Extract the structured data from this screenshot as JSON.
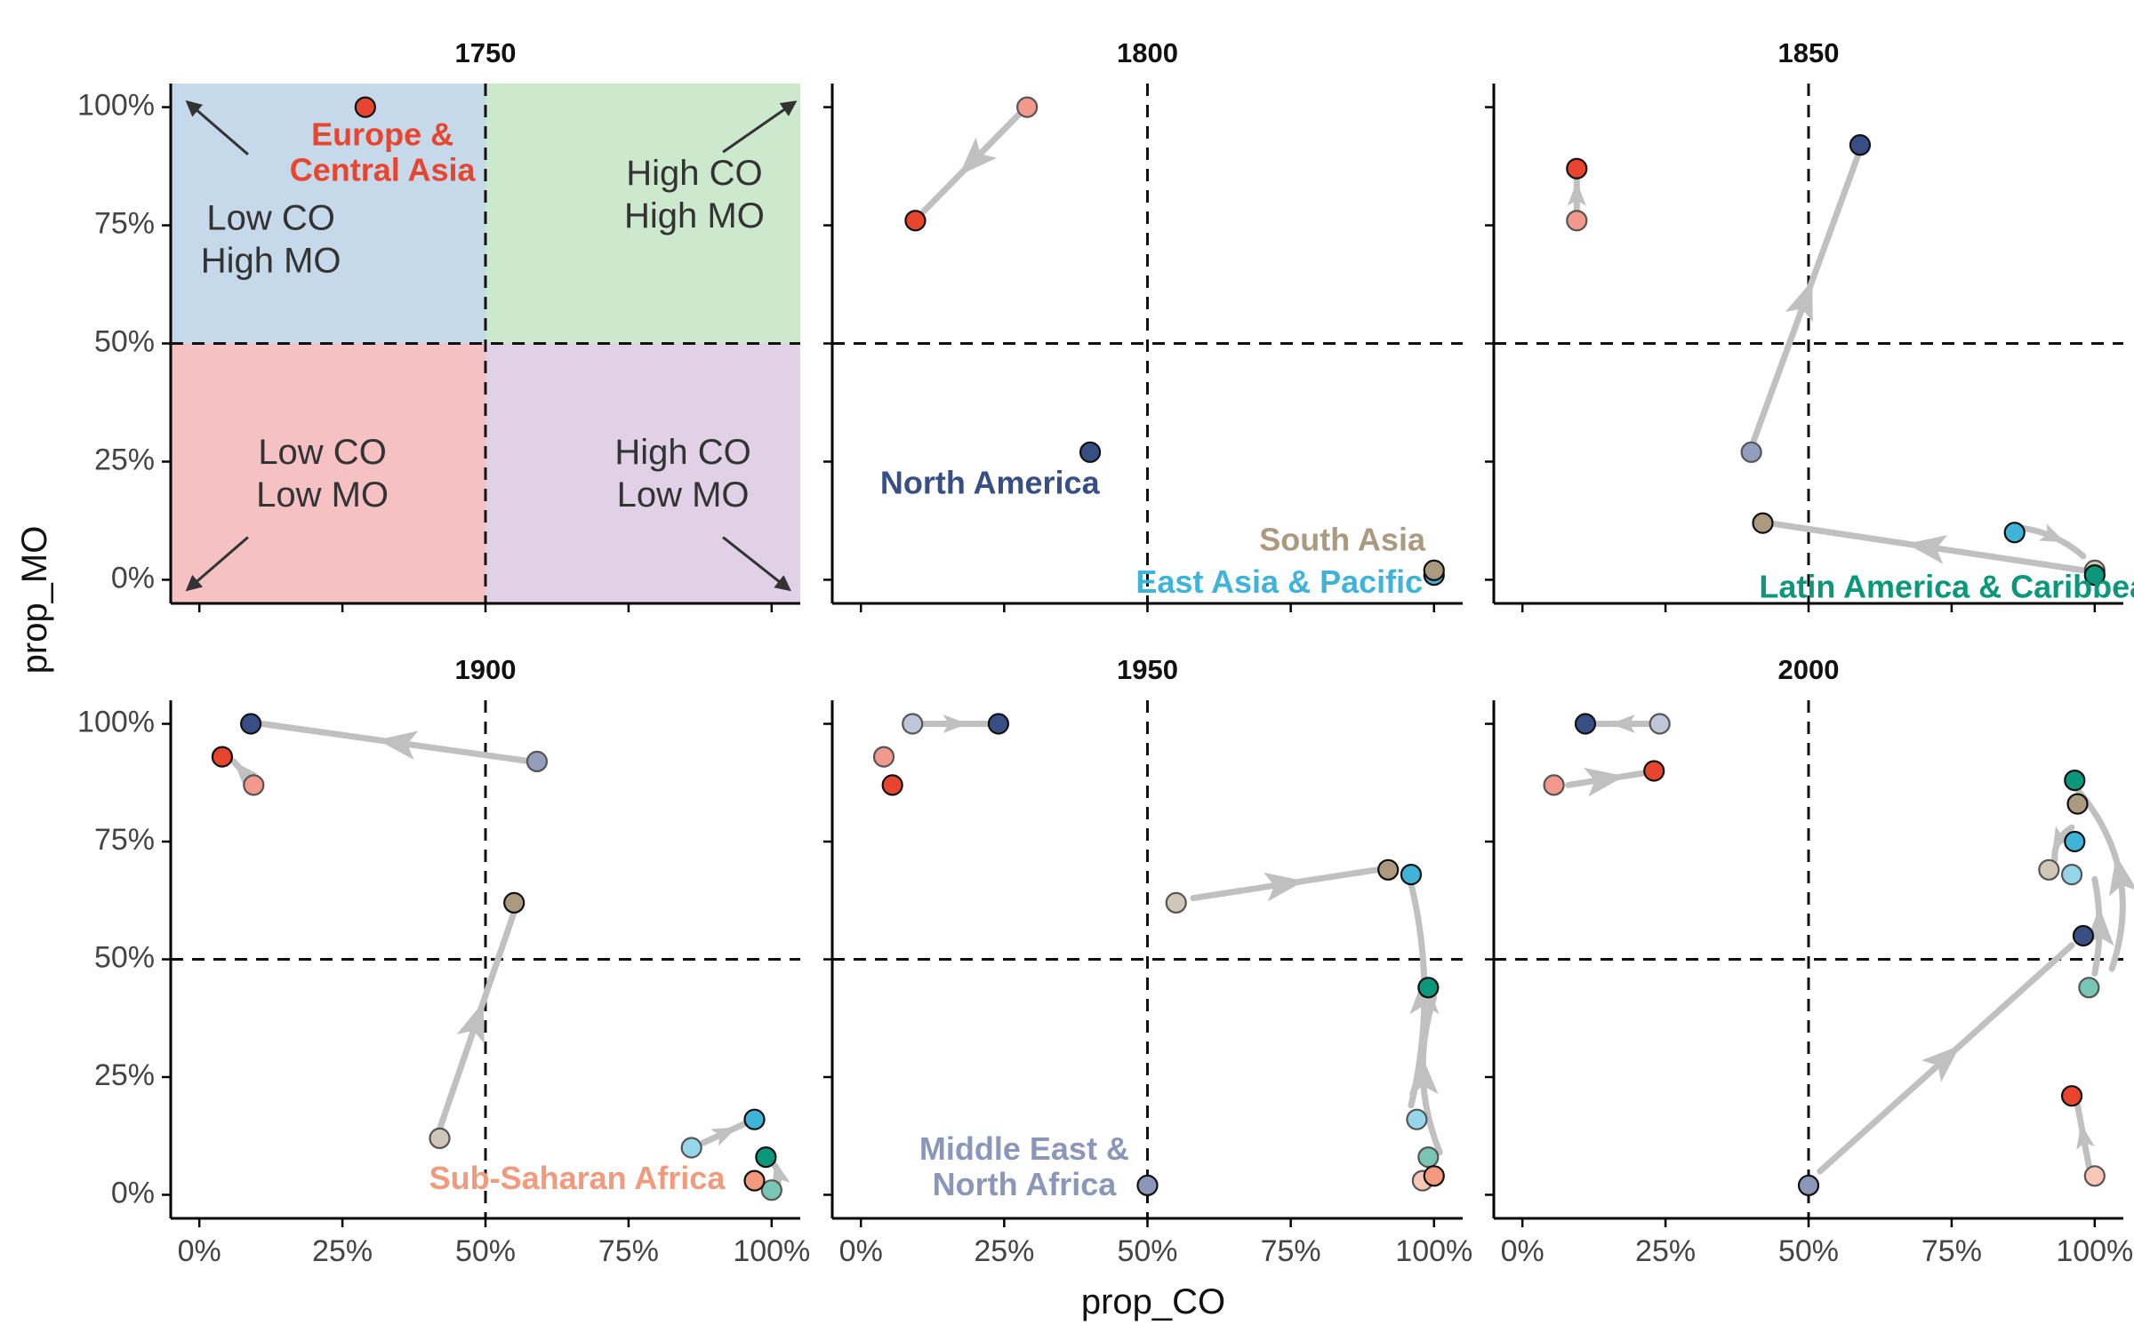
{
  "chart_data": {
    "type": "scatter",
    "xlabel": "prop_CO",
    "ylabel": "prop_MO",
    "xlim": [
      -0.05,
      1.05
    ],
    "ylim": [
      -0.05,
      1.05
    ],
    "x_ticks": [
      "0%",
      "25%",
      "50%",
      "75%",
      "100%"
    ],
    "y_ticks": [
      "0%",
      "25%",
      "50%",
      "75%",
      "100%"
    ],
    "reference_lines": {
      "x": 0.5,
      "y": 0.5,
      "style": "dashed"
    },
    "region_colors": {
      "Europe & Central Asia": "#e8452f",
      "North America": "#384f86",
      "South Asia": "#ac9a80",
      "East Asia & Pacific": "#3fb4d8",
      "Latin America & Caribbean": "#0b9779",
      "Sub-Saharan Africa": "#f29a7b",
      "Middle East & North Africa": "#8b97b9"
    },
    "quadrant_colors": {
      "low_co_high_mo": "#c6d9ea",
      "high_co_high_mo": "#cce8cd",
      "low_co_low_mo": "#f5c1c2",
      "high_co_low_mo": "#e0d1e6"
    },
    "arrow_color": "#c0c0c0",
    "panels": [
      {
        "year": "1750",
        "quadrants": [
          {
            "key": "low_co_high_mo",
            "label": "Low CO\nHigh MO"
          },
          {
            "key": "high_co_high_mo",
            "label": "High CO\nHigh MO"
          },
          {
            "key": "low_co_low_mo",
            "label": "Low CO\nLow MO"
          },
          {
            "key": "high_co_low_mo",
            "label": "High CO\nLow MO"
          }
        ],
        "points": [
          {
            "region": "Europe & Central Asia",
            "x": 0.29,
            "y": 1.0
          }
        ],
        "labels": [
          {
            "region": "Europe & Central Asia",
            "text": "Europe &\nCentral Asia",
            "x": 0.32,
            "y": 0.9,
            "anchor": "middle"
          }
        ]
      },
      {
        "year": "1800",
        "points": [
          {
            "region": "Europe & Central Asia",
            "x": 0.29,
            "y": 1.0,
            "prior": true
          },
          {
            "region": "Europe & Central Asia",
            "x": 0.095,
            "y": 0.76
          },
          {
            "region": "North America",
            "x": 0.4,
            "y": 0.27
          },
          {
            "region": "East Asia & Pacific",
            "x": 1.0,
            "y": 0.01
          },
          {
            "region": "South Asia",
            "x": 1.0,
            "y": 0.02
          }
        ],
        "moves": [
          {
            "from": [
              0.28,
              0.99
            ],
            "to": [
              0.11,
              0.78
            ]
          }
        ],
        "labels": [
          {
            "region": "North America",
            "text": "North America",
            "x": 0.225,
            "y": 0.2,
            "anchor": "middle"
          },
          {
            "region": "South Asia",
            "text": "South Asia",
            "x": 0.84,
            "y": 0.08,
            "anchor": "middle"
          },
          {
            "region": "East Asia & Pacific",
            "text": "East Asia & Pacific",
            "x": 0.73,
            "y": -0.01,
            "anchor": "middle"
          }
        ]
      },
      {
        "year": "1850",
        "points": [
          {
            "region": "Europe & Central Asia",
            "x": 0.095,
            "y": 0.76,
            "prior": true
          },
          {
            "region": "Europe & Central Asia",
            "x": 0.095,
            "y": 0.87
          },
          {
            "region": "North America",
            "x": 0.4,
            "y": 0.27,
            "prior": true
          },
          {
            "region": "North America",
            "x": 0.59,
            "y": 0.92
          },
          {
            "region": "South Asia",
            "x": 0.42,
            "y": 0.12
          },
          {
            "region": "South Asia",
            "x": 1.0,
            "y": 0.02,
            "prior": true
          },
          {
            "region": "East Asia & Pacific",
            "x": 0.86,
            "y": 0.1
          },
          {
            "region": "Latin America & Caribbean",
            "x": 1.0,
            "y": 0.01
          }
        ],
        "moves": [
          {
            "from": [
              0.4,
              0.28
            ],
            "to": [
              0.59,
              0.91
            ]
          },
          {
            "from": [
              0.98,
              0.02
            ],
            "to": [
              0.43,
              0.12
            ]
          },
          {
            "from": [
              0.095,
              0.775
            ],
            "to": [
              0.095,
              0.86
            ]
          },
          {
            "from": [
              0.87,
              0.11
            ],
            "to": [
              0.98,
              0.05
            ],
            "curve": -0.15
          }
        ],
        "labels": [
          {
            "region": "Latin America & Caribbean",
            "text": "Latin America & Caribbean",
            "x": 0.77,
            "y": -0.02,
            "anchor": "middle"
          }
        ]
      },
      {
        "year": "1900",
        "points": [
          {
            "region": "North America",
            "x": 0.59,
            "y": 0.92,
            "prior": true
          },
          {
            "region": "North America",
            "x": 0.09,
            "y": 1.0
          },
          {
            "region": "Europe & Central Asia",
            "x": 0.095,
            "y": 0.87,
            "prior": true
          },
          {
            "region": "Europe & Central Asia",
            "x": 0.04,
            "y": 0.93
          },
          {
            "region": "South Asia",
            "x": 0.42,
            "y": 0.12,
            "prior": true
          },
          {
            "region": "South Asia",
            "x": 0.55,
            "y": 0.62
          },
          {
            "region": "East Asia & Pacific",
            "x": 0.86,
            "y": 0.1,
            "prior": true
          },
          {
            "region": "East Asia & Pacific",
            "x": 0.97,
            "y": 0.16
          },
          {
            "region": "Latin America & Caribbean",
            "x": 0.99,
            "y": 0.08
          },
          {
            "region": "Latin America & Caribbean",
            "x": 1.0,
            "y": 0.01,
            "prior": true
          },
          {
            "region": "Sub-Saharan Africa",
            "x": 0.97,
            "y": 0.03
          }
        ],
        "moves": [
          {
            "from": [
              0.58,
              0.92
            ],
            "to": [
              0.11,
              1.0
            ]
          },
          {
            "from": [
              0.42,
              0.14
            ],
            "to": [
              0.55,
              0.6
            ]
          },
          {
            "from": [
              0.09,
              0.88
            ],
            "to": [
              0.06,
              0.92
            ]
          },
          {
            "from": [
              0.88,
              0.11
            ],
            "to": [
              0.96,
              0.155
            ]
          },
          {
            "from": [
              1.01,
              0.02
            ],
            "to": [
              1.0,
              0.07
            ],
            "curve": 0.3
          }
        ],
        "labels": [
          {
            "region": "Sub-Saharan Africa",
            "text": "Sub-Saharan Africa",
            "x": 0.66,
            "y": 0.03,
            "anchor": "middle"
          }
        ]
      },
      {
        "year": "1950",
        "points": [
          {
            "region": "Middle East & North Africa",
            "x": 0.09,
            "y": 1.0,
            "prior": true
          },
          {
            "region": "North America",
            "x": 0.24,
            "y": 1.0
          },
          {
            "region": "Europe & Central Asia",
            "x": 0.04,
            "y": 0.93,
            "prior": true
          },
          {
            "region": "Europe & Central Asia",
            "x": 0.055,
            "y": 0.87
          },
          {
            "region": "South Asia",
            "x": 0.55,
            "y": 0.62,
            "prior": true
          },
          {
            "region": "South Asia",
            "x": 0.92,
            "y": 0.69
          },
          {
            "region": "East Asia & Pacific",
            "x": 0.96,
            "y": 0.68
          },
          {
            "region": "Latin America & Caribbean",
            "x": 0.99,
            "y": 0.44
          },
          {
            "region": "East Asia & Pacific",
            "x": 0.97,
            "y": 0.16,
            "prior": true
          },
          {
            "region": "Latin America & Caribbean",
            "x": 0.99,
            "y": 0.08,
            "prior": true
          },
          {
            "region": "Sub-Saharan Africa",
            "x": 0.98,
            "y": 0.03,
            "prior": true
          },
          {
            "region": "Sub-Saharan Africa",
            "x": 1.0,
            "y": 0.04
          },
          {
            "region": "Middle East & North Africa",
            "x": 0.5,
            "y": 0.02
          }
        ],
        "moves": [
          {
            "from": [
              0.11,
              1.0
            ],
            "to": [
              0.22,
              1.0
            ]
          },
          {
            "from": [
              0.58,
              0.63
            ],
            "to": [
              0.9,
              0.69
            ]
          },
          {
            "from": [
              0.96,
              0.19
            ],
            "to": [
              0.96,
              0.66
            ],
            "curve": 0.12
          },
          {
            "from": [
              1.01,
              0.09
            ],
            "to": [
              1.0,
              0.42
            ],
            "curve": -0.18
          }
        ],
        "labels": [
          {
            "region": "Middle East & North Africa",
            "text": "Middle East &\nNorth Africa",
            "x": 0.285,
            "y": 0.055,
            "anchor": "middle"
          }
        ]
      },
      {
        "year": "2000",
        "points": [
          {
            "region": "Middle East & North Africa",
            "x": 0.24,
            "y": 1.0,
            "prior": true
          },
          {
            "region": "North America",
            "x": 0.11,
            "y": 1.0
          },
          {
            "region": "Europe & Central Asia",
            "x": 0.055,
            "y": 0.87,
            "prior": true
          },
          {
            "region": "Europe & Central Asia",
            "x": 0.23,
            "y": 0.9
          },
          {
            "region": "Latin America & Caribbean",
            "x": 0.965,
            "y": 0.88
          },
          {
            "region": "South Asia",
            "x": 0.97,
            "y": 0.83
          },
          {
            "region": "East Asia & Pacific",
            "x": 0.965,
            "y": 0.75
          },
          {
            "region": "South Asia",
            "x": 0.92,
            "y": 0.69,
            "prior": true
          },
          {
            "region": "East Asia & Pacific",
            "x": 0.96,
            "y": 0.68,
            "prior": true
          },
          {
            "region": "North America",
            "x": 0.98,
            "y": 0.55
          },
          {
            "region": "Latin America & Caribbean",
            "x": 0.99,
            "y": 0.44,
            "prior": true
          },
          {
            "region": "Europe & Central Asia",
            "x": 0.96,
            "y": 0.21
          },
          {
            "region": "Sub-Saharan Africa",
            "x": 1.0,
            "y": 0.04,
            "prior": true
          },
          {
            "region": "Middle East & North Africa",
            "x": 0.5,
            "y": 0.02
          }
        ],
        "moves": [
          {
            "from": [
              0.22,
              1.0
            ],
            "to": [
              0.13,
              1.0
            ]
          },
          {
            "from": [
              0.08,
              0.87
            ],
            "to": [
              0.21,
              0.895
            ]
          },
          {
            "from": [
              0.52,
              0.05
            ],
            "to": [
              0.96,
              0.53
            ]
          },
          {
            "from": [
              0.99,
              0.06
            ],
            "to": [
              0.97,
              0.19
            ]
          },
          {
            "from": [
              1.0,
              0.47
            ],
            "to": [
              1.0,
              0.67
            ],
            "curve": 0.1
          },
          {
            "from": [
              1.03,
              0.48
            ],
            "to": [
              0.97,
              0.86
            ],
            "curve": 0.28
          },
          {
            "from": [
              0.96,
              0.78
            ],
            "to": [
              0.93,
              0.71
            ],
            "curve": 0.3
          }
        ]
      }
    ]
  }
}
